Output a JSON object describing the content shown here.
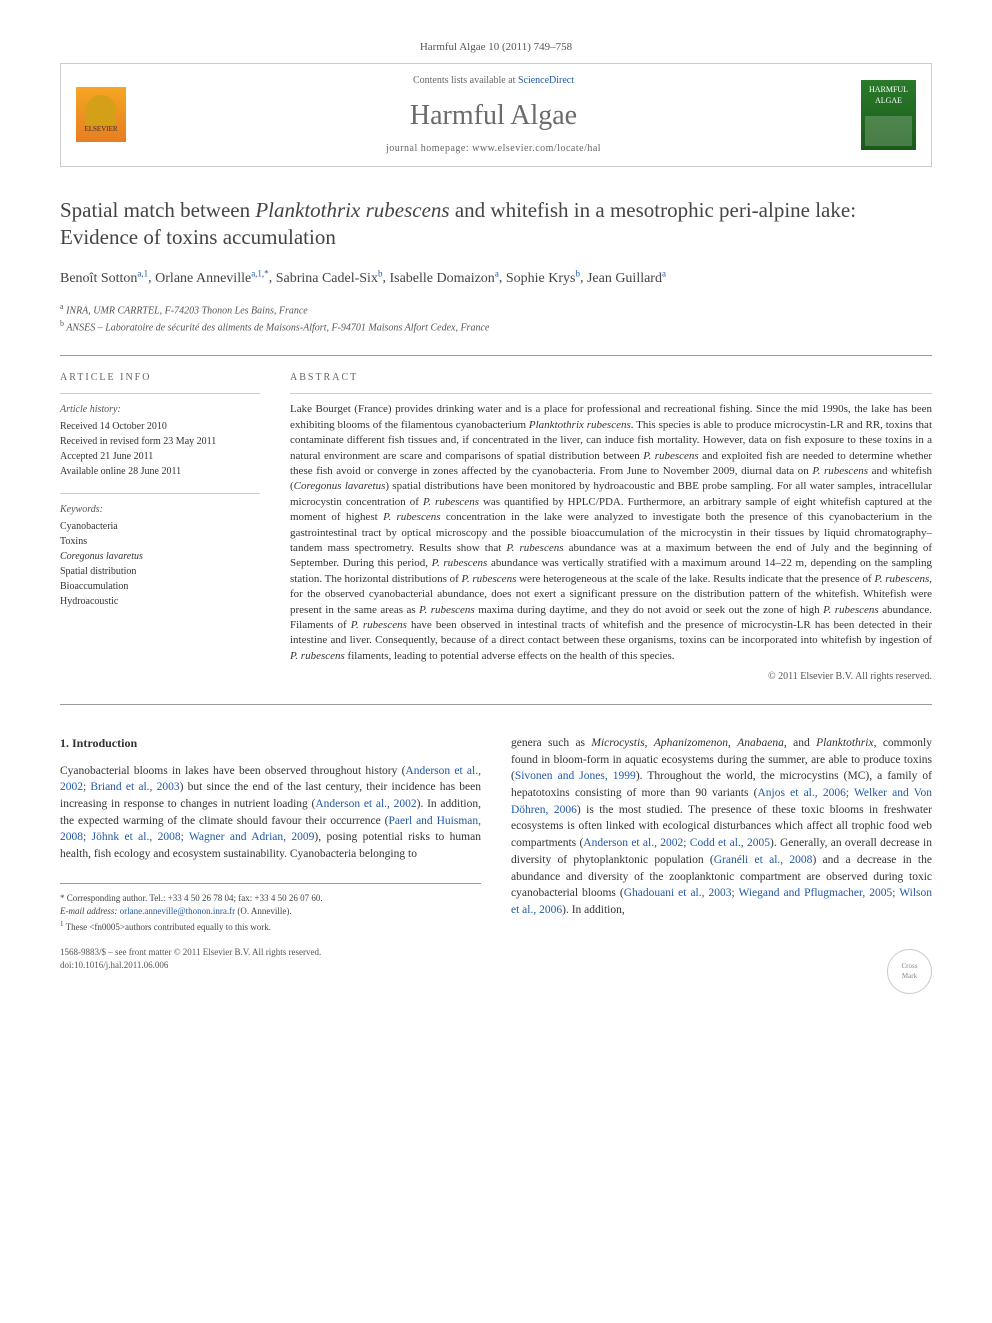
{
  "journal_ref": "Harmful Algae 10 (2011) 749–758",
  "header": {
    "sciencedirect_prefix": "Contents lists available at ",
    "sciencedirect": "ScienceDirect",
    "journal_name": "Harmful Algae",
    "homepage_prefix": "journal homepage: ",
    "homepage": "www.elsevier.com/locate/hal",
    "elsevier_label": "ELSEVIER",
    "cover_title": "HARMFUL ALGAE"
  },
  "title_line1": "Spatial match between ",
  "title_species": "Planktothrix rubescens",
  "title_line2": " and whitefish in a mesotrophic peri-alpine lake: Evidence of toxins accumulation",
  "authors": [
    {
      "name": "Benoît Sotton",
      "sup": "a,1"
    },
    {
      "name": "Orlane Anneville",
      "sup": "a,1,*"
    },
    {
      "name": "Sabrina Cadel-Six",
      "sup": "b"
    },
    {
      "name": "Isabelle Domaizon",
      "sup": "a"
    },
    {
      "name": "Sophie Krys",
      "sup": "b"
    },
    {
      "name": "Jean Guillard",
      "sup": "a"
    }
  ],
  "affiliations": [
    {
      "sup": "a",
      "text": "INRA, UMR CARRTEL, F-74203 Thonon Les Bains, France"
    },
    {
      "sup": "b",
      "text": "ANSES – Laboratoire de sécurité des aliments de Maisons-Alfort, F-94701 Maisons Alfort Cedex, France"
    }
  ],
  "article_info": {
    "heading": "ARTICLE INFO",
    "history_label": "Article history:",
    "history": [
      "Received 14 October 2010",
      "Received in revised form 23 May 2011",
      "Accepted 21 June 2011",
      "Available online 28 June 2011"
    ],
    "keywords_label": "Keywords:",
    "keywords": [
      "Cyanobacteria",
      "Toxins",
      "Coregonus lavaretus",
      "Spatial distribution",
      "Bioaccumulation",
      "Hydroacoustic"
    ]
  },
  "abstract": {
    "heading": "ABSTRACT",
    "text": "Lake Bourget (France) provides drinking water and is a place for professional and recreational fishing. Since the mid 1990s, the lake has been exhibiting blooms of the filamentous cyanobacterium Planktothrix rubescens. This species is able to produce microcystin-LR and RR, toxins that contaminate different fish tissues and, if concentrated in the liver, can induce fish mortality. However, data on fish exposure to these toxins in a natural environment are scare and comparisons of spatial distribution between P. rubescens and exploited fish are needed to determine whether these fish avoid or converge in zones affected by the cyanobacteria. From June to November 2009, diurnal data on P. rubescens and whitefish (Coregonus lavaretus) spatial distributions have been monitored by hydroacoustic and BBE probe sampling. For all water samples, intracellular microcystin concentration of P. rubescens was quantified by HPLC/PDA. Furthermore, an arbitrary sample of eight whitefish captured at the moment of highest P. rubescens concentration in the lake were analyzed to investigate both the presence of this cyanobacterium in the gastrointestinal tract by optical microscopy and the possible bioaccumulation of the microcystin in their tissues by liquid chromatography–tandem mass spectrometry. Results show that P. rubescens abundance was at a maximum between the end of July and the beginning of September. During this period, P. rubescens abundance was vertically stratified with a maximum around 14–22 m, depending on the sampling station. The horizontal distributions of P. rubescens were heterogeneous at the scale of the lake. Results indicate that the presence of P. rubescens, for the observed cyanobacterial abundance, does not exert a significant pressure on the distribution pattern of the whitefish. Whitefish were present in the same areas as P. rubescens maxima during daytime, and they do not avoid or seek out the zone of high P. rubescens abundance. Filaments of P. rubescens have been observed in intestinal tracts of whitefish and the presence of microcystin-LR has been detected in their intestine and liver. Consequently, because of a direct contact between these organisms, toxins can be incorporated into whitefish by ingestion of P. rubescens filaments, leading to potential adverse effects on the health of this species.",
    "copyright": "© 2011 Elsevier B.V. All rights reserved."
  },
  "section1": {
    "heading": "1. Introduction",
    "col1": "Cyanobacterial blooms in lakes have been observed throughout history (Anderson et al., 2002; Briand et al., 2003) but since the end of the last century, their incidence has been increasing in response to changes in nutrient loading (Anderson et al., 2002). In addition, the expected warming of the climate should favour their occurrence (Paerl and Huisman, 2008; Jöhnk et al., 2008; Wagner and Adrian, 2009), posing potential risks to human health, fish ecology and ecosystem sustainability. Cyanobacteria belonging to",
    "col2": "genera such as Microcystis, Aphanizomenon, Anabaena, and Planktothrix, commonly found in bloom-form in aquatic ecosystems during the summer, are able to produce toxins (Sivonen and Jones, 1999). Throughout the world, the microcystins (MC), a family of hepatotoxins consisting of more than 90 variants (Anjos et al., 2006; Welker and Von Döhren, 2006) is the most studied. The presence of these toxic blooms in freshwater ecosystems is often linked with ecological disturbances which affect all trophic food web compartments (Anderson et al., 2002; Codd et al., 2005). Generally, an overall decrease in diversity of phytoplanktonic population (Granéli et al., 2008) and a decrease in the abundance and diversity of the zooplanktonic compartment are observed during toxic cyanobacterial blooms (Ghadouani et al., 2003; Wiegand and Pflugmacher, 2005; Wilson et al., 2006). In addition,"
  },
  "footnotes": {
    "corresponding": "* Corresponding author. Tel.: +33 4 50 26 78 04; fax: +33 4 50 26 07 60.",
    "email_label": "E-mail address:",
    "email": "orlane.anneville@thonon.inra.fr",
    "email_paren": "(O. Anneville).",
    "equal": "These <fn0005>authors contributed equally to this work.",
    "equal_sup": "1"
  },
  "footer": {
    "issn": "1568-9883/$ – see front matter © 2011 Elsevier B.V. All rights reserved.",
    "doi": "doi:10.1016/j.hal.2011.06.006"
  },
  "colors": {
    "link": "#2159a8",
    "text": "#333333",
    "muted": "#666666"
  }
}
